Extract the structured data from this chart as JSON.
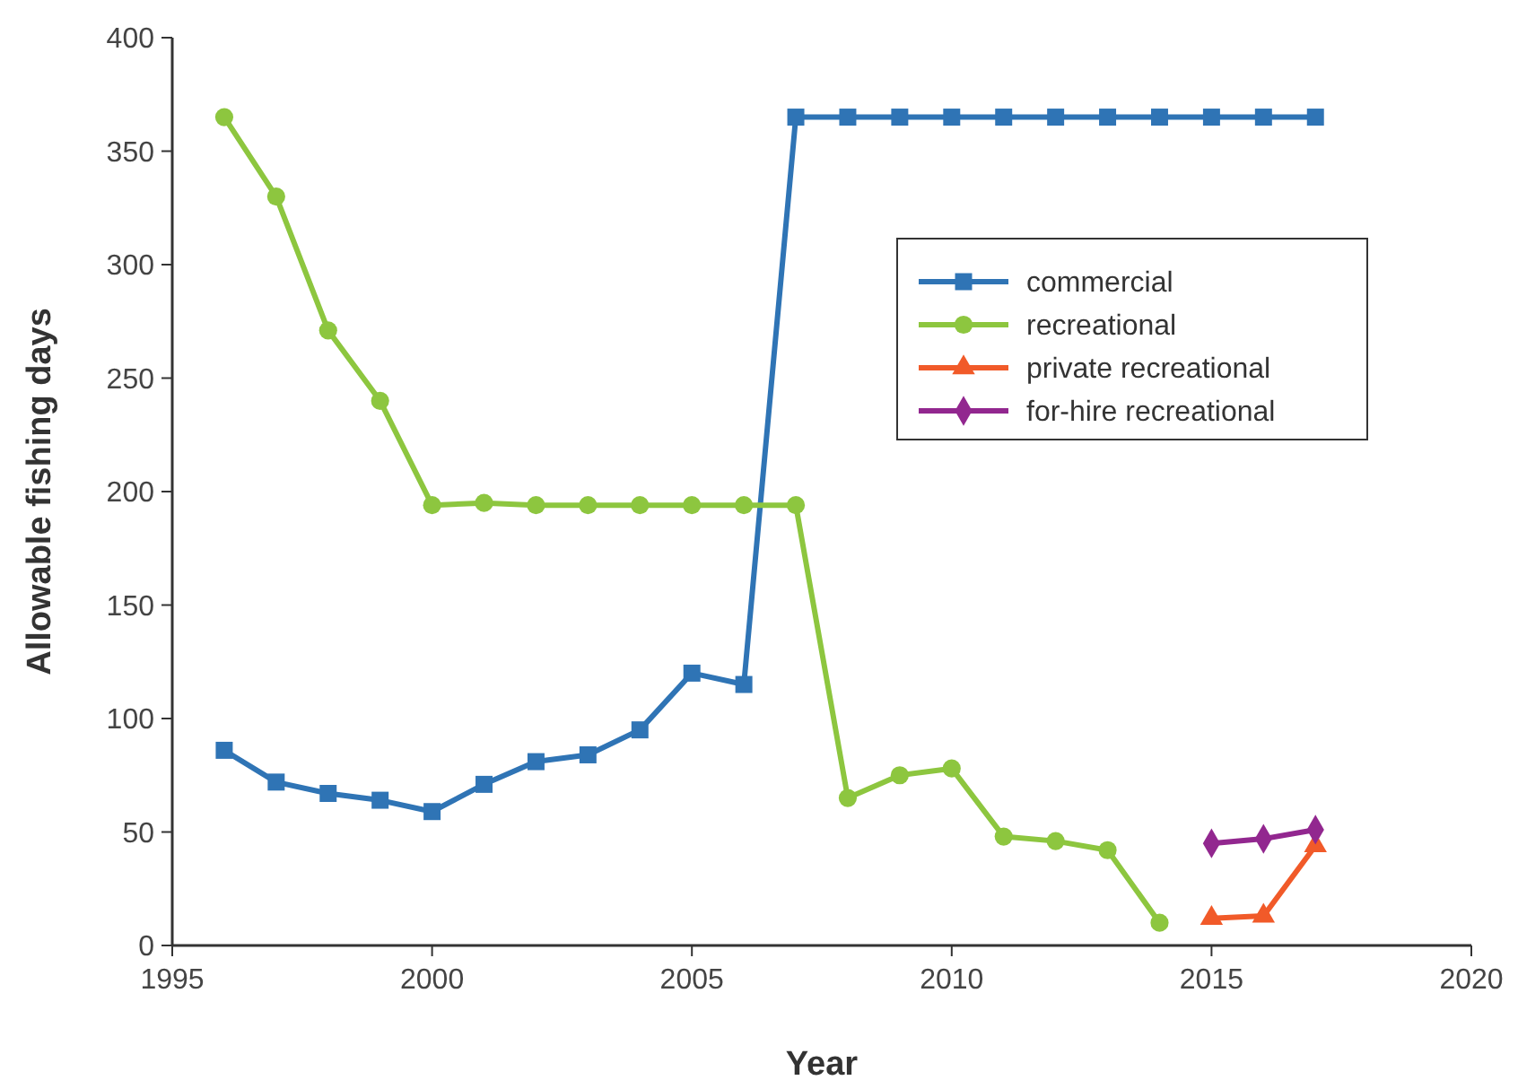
{
  "chart_data": {
    "type": "line",
    "xlabel": "Year",
    "ylabel": "Allowable fishing days",
    "xlim": [
      1995,
      2020
    ],
    "xticks": [
      1995,
      2000,
      2005,
      2010,
      2015,
      2020
    ],
    "ylim": [
      0,
      400
    ],
    "yticks": [
      0,
      50,
      100,
      150,
      200,
      250,
      300,
      350,
      400
    ],
    "grid": false,
    "legend": "top right",
    "line_style": "solid",
    "series": [
      {
        "name": "commercial",
        "color": "#2f74b5",
        "marker": "square",
        "x": [
          1996,
          1997,
          1998,
          1999,
          2000,
          2001,
          2002,
          2003,
          2004,
          2005,
          2006,
          2007,
          2008,
          2009,
          2010,
          2011,
          2012,
          2013,
          2014,
          2015,
          2016,
          2017
        ],
        "values": [
          86,
          72,
          67,
          64,
          59,
          71,
          81,
          84,
          95,
          120,
          115,
          365,
          365,
          365,
          365,
          365,
          365,
          365,
          365,
          365,
          365,
          365
        ]
      },
      {
        "name": "recreational",
        "color": "#8dc63f",
        "marker": "circle",
        "x": [
          1996,
          1997,
          1998,
          1999,
          2000,
          2001,
          2002,
          2003,
          2004,
          2005,
          2006,
          2007,
          2008,
          2009,
          2010,
          2011,
          2012,
          2013,
          2014
        ],
        "values": [
          365,
          330,
          271,
          240,
          194,
          195,
          194,
          194,
          194,
          194,
          194,
          194,
          65,
          75,
          78,
          48,
          46,
          42,
          10
        ]
      },
      {
        "name": "private recreational",
        "color": "#f15a29",
        "marker": "triangle",
        "x": [
          2015,
          2016,
          2017
        ],
        "values": [
          12,
          13,
          44
        ]
      },
      {
        "name": "for-hire recreational",
        "color": "#92278f",
        "marker": "diamond",
        "x": [
          2015,
          2016,
          2017
        ],
        "values": [
          45,
          47,
          51
        ]
      }
    ]
  }
}
